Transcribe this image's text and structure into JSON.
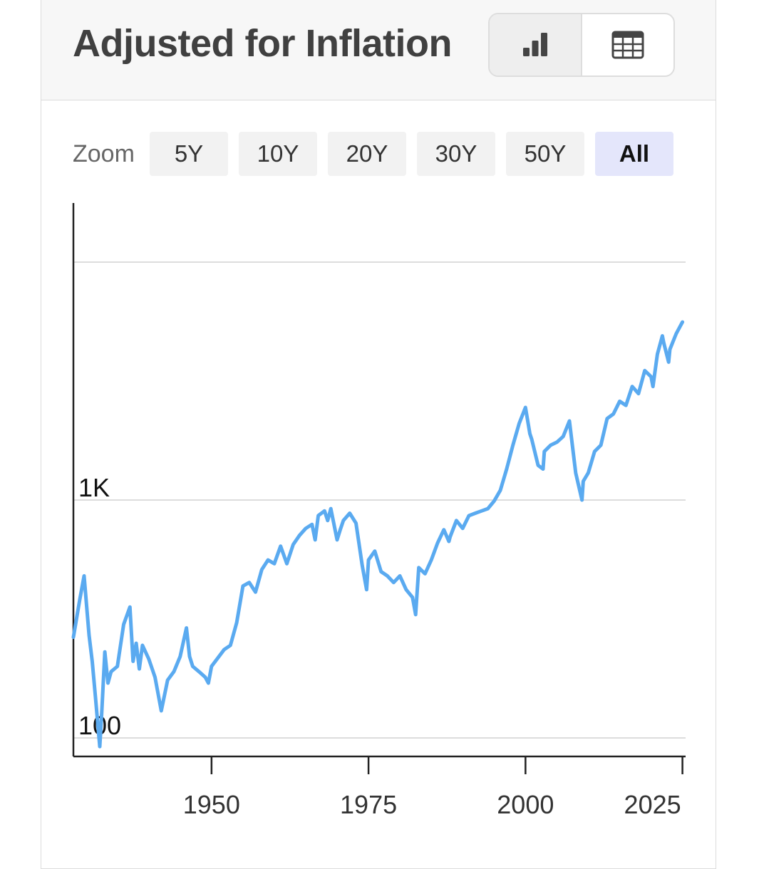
{
  "card": {
    "title": "Adjusted for Inflation",
    "view_buttons": [
      {
        "name": "chart-view",
        "icon": "bar-chart-icon",
        "active": true
      },
      {
        "name": "table-view",
        "icon": "table-icon",
        "active": false
      }
    ]
  },
  "zoom": {
    "label": "Zoom",
    "options": [
      "5Y",
      "10Y",
      "20Y",
      "30Y",
      "50Y",
      "All"
    ],
    "active": "All"
  },
  "colors": {
    "line": "#5aaaf0",
    "grid": "#dddddd",
    "axis": "#222222",
    "zoom_active_bg": "#e4e6fb"
  },
  "chart_data": {
    "type": "line",
    "title": "",
    "xlabel": "",
    "ylabel": "",
    "yscale": "log",
    "xlim": [
      1928,
      2025.5
    ],
    "ylim": [
      85,
      10000
    ],
    "x_ticks": [
      1950,
      1975,
      2000,
      2025
    ],
    "y_ticks": [
      {
        "value": 100,
        "label": "100"
      },
      {
        "value": 1000,
        "label": "1K"
      },
      {
        "value": 10000,
        "label": ""
      }
    ],
    "grid": true,
    "series": [
      {
        "x": [
          1928,
          1929,
          1929.7,
          1930.5,
          1931,
          1931.5,
          1932.2,
          1932.5,
          1933,
          1933.5,
          1934,
          1935,
          1936,
          1937,
          1937.5,
          1938,
          1938.5,
          1939,
          1940,
          1941,
          1942,
          1943,
          1944,
          1945,
          1946,
          1946.5,
          1947,
          1948,
          1949,
          1949.5,
          1950,
          1952,
          1953,
          1954,
          1955,
          1956,
          1957,
          1958,
          1959,
          1960,
          1961,
          1962,
          1963,
          1964,
          1965,
          1966,
          1966.5,
          1967,
          1968,
          1968.5,
          1969,
          1970,
          1970.5,
          1971,
          1972,
          1973,
          1974,
          1974.7,
          1975,
          1976,
          1977,
          1978,
          1979,
          1980,
          1981,
          1982,
          1982.5,
          1983,
          1984,
          1985,
          1986,
          1987,
          1987.8,
          1988,
          1989,
          1990,
          1991,
          1992,
          1993,
          1994,
          1995,
          1996,
          1997,
          1998,
          1999,
          2000,
          2000.7,
          2001,
          2002,
          2002.8,
          2003,
          2004,
          2005,
          2006,
          2007,
          2008,
          2009,
          2009.2,
          2010,
          2011,
          2012,
          2013,
          2014,
          2015,
          2016,
          2017,
          2018,
          2019,
          2020,
          2020.3,
          2021,
          2021.8,
          2022,
          2022.8,
          2023,
          2024,
          2025
        ],
        "values": [
          265,
          380,
          480,
          270,
          210,
          150,
          92,
          125,
          230,
          170,
          190,
          200,
          300,
          355,
          210,
          250,
          195,
          245,
          215,
          180,
          130,
          175,
          190,
          220,
          290,
          220,
          200,
          190,
          180,
          170,
          200,
          235,
          245,
          305,
          435,
          450,
          410,
          510,
          560,
          540,
          640,
          540,
          650,
          710,
          760,
          790,
          680,
          860,
          900,
          820,
          920,
          680,
          750,
          820,
          880,
          800,
          530,
          420,
          560,
          610,
          500,
          480,
          450,
          480,
          420,
          390,
          330,
          520,
          490,
          560,
          660,
          750,
          670,
          700,
          820,
          760,
          860,
          880,
          900,
          920,
          990,
          1100,
          1350,
          1700,
          2100,
          2450,
          1900,
          1800,
          1400,
          1350,
          1600,
          1700,
          1750,
          1850,
          2150,
          1300,
          1000,
          1200,
          1300,
          1600,
          1700,
          2200,
          2300,
          2600,
          2500,
          3000,
          2800,
          3500,
          3300,
          3000,
          4100,
          4900,
          4600,
          3800,
          4300,
          5000,
          5600
        ]
      }
    ]
  }
}
